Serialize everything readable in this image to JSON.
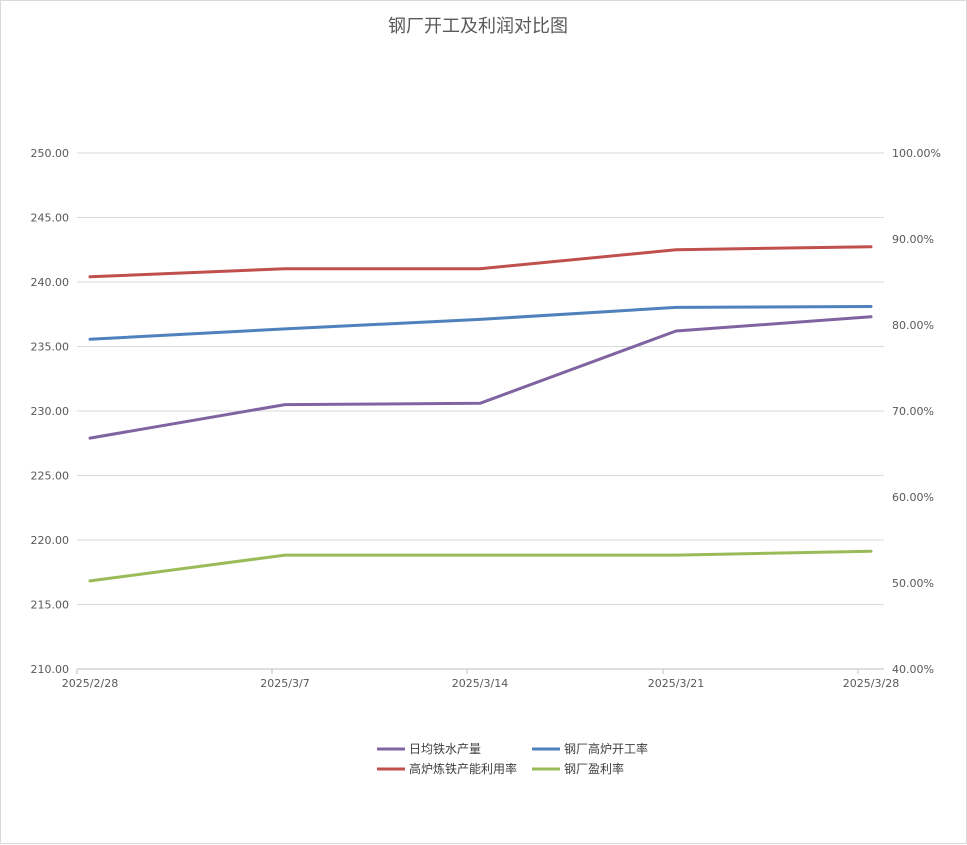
{
  "chart_data": {
    "type": "line",
    "title": "钢厂开工及利润对比图",
    "categories": [
      "2025/2/28",
      "2025/3/7",
      "2025/3/14",
      "2025/3/21",
      "2025/3/28"
    ],
    "y_left": {
      "ylim": [
        210,
        250
      ],
      "ticks": [
        "210.00",
        "215.00",
        "220.00",
        "225.00",
        "230.00",
        "235.00",
        "240.00",
        "245.00",
        "250.00"
      ]
    },
    "y_right": {
      "ylim": [
        0.4,
        1.0
      ],
      "ticks": [
        "40.00%",
        "50.00%",
        "60.00%",
        "70.00%",
        "80.00%",
        "90.00%",
        "100.00%"
      ]
    },
    "grid": true,
    "legend_position": "bottom",
    "series": [
      {
        "name": "日均铁水产量",
        "axis": "left",
        "color": "#8064a2",
        "values": [
          227.9,
          230.5,
          230.6,
          236.2,
          237.3
        ]
      },
      {
        "name": "钢厂高炉开工率",
        "axis": "right",
        "color": "#4f81bd",
        "values": [
          0.7835,
          0.7955,
          0.8065,
          0.8205,
          0.8215
        ]
      },
      {
        "name": "高炉炼铁产能利用率",
        "axis": "right",
        "color": "#c0504d",
        "values": [
          0.856,
          0.8655,
          0.8655,
          0.8875,
          0.891
        ]
      },
      {
        "name": "钢厂盈利率",
        "axis": "right",
        "color": "#9bbb59",
        "values": [
          0.5025,
          0.5325,
          0.5325,
          0.5325,
          0.537
        ]
      }
    ]
  }
}
